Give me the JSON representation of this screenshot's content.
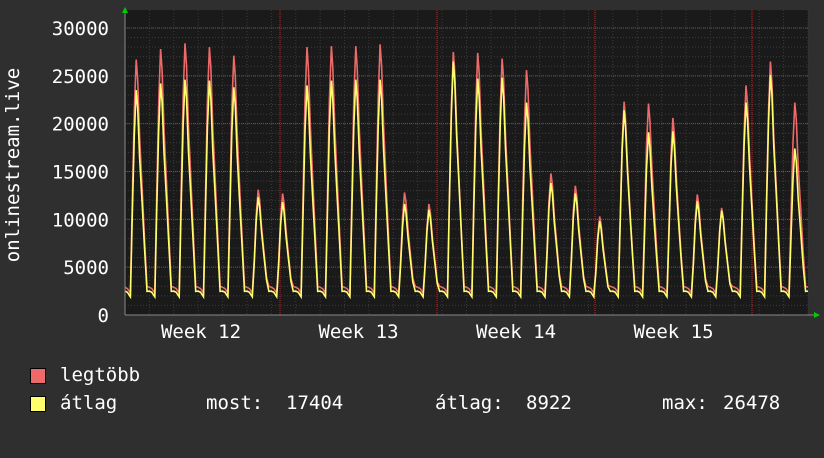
{
  "chart_data": {
    "type": "area",
    "ylabel": "onlinestream.live",
    "ylim": [
      0,
      30000
    ],
    "y_ticks": [
      0,
      5000,
      10000,
      15000,
      20000,
      25000,
      30000
    ],
    "x_tick_labels": [
      "Week 12",
      "Week 13",
      "Week 14",
      "Week 15"
    ],
    "grid": true,
    "colors": {
      "background": "#2f2f2f",
      "plot_bg": "#1a1a1a",
      "grid": "#5a5a5a",
      "max_series": "#ee6a6a",
      "avg_series": "#ffff6e",
      "axis": "#888888",
      "arrow": "#00cc00"
    },
    "series": [
      {
        "name": "legtöbb",
        "daily_peaks": [
          26700,
          27800,
          28400,
          28000,
          27100,
          13100,
          12700,
          28000,
          28100,
          28100,
          28300,
          12800,
          11600,
          27500,
          27400,
          26800,
          25600,
          14800,
          13500,
          10300,
          22300,
          22100,
          20600,
          12600,
          11200,
          24000,
          26500,
          22200
        ]
      },
      {
        "name": "átlag",
        "daily_peaks": [
          23500,
          24200,
          24600,
          24500,
          23800,
          12300,
          11800,
          24000,
          24500,
          24600,
          24600,
          11600,
          11000,
          26500,
          24700,
          24800,
          22200,
          13800,
          12700,
          9800,
          21400,
          19100,
          19200,
          11900,
          10900,
          22200,
          25100,
          17404
        ]
      }
    ],
    "stats": {
      "most_label": "most:",
      "most_value": "17404",
      "avg_label": "átlag:",
      "avg_value": "8922",
      "max_label": "max:",
      "max_value": "26478"
    }
  }
}
